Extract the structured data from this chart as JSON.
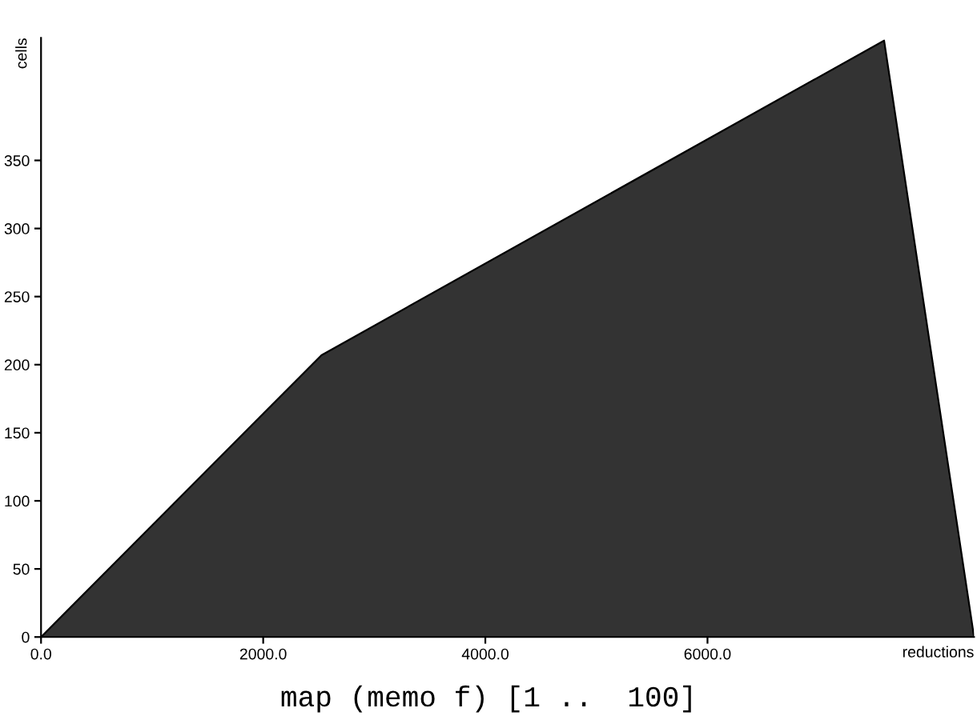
{
  "chart_data": {
    "type": "area",
    "title": "map (memo f) [1 ..  100]",
    "xlabel": "reductions",
    "ylabel": "cells",
    "x": [
      0,
      2525,
      7590,
      8400
    ],
    "series": [
      {
        "color": "#333333",
        "values": [
          0,
          207,
          438,
          0
        ]
      }
    ],
    "xlim": [
      0,
      8400
    ],
    "ylim": [
      0,
      440
    ],
    "xticks": [
      {
        "value": 0,
        "label": "0.0"
      },
      {
        "value": 2000,
        "label": "2000.0"
      },
      {
        "value": 4000,
        "label": "4000.0"
      },
      {
        "value": 6000,
        "label": "6000.0"
      }
    ],
    "yticks": [
      0,
      50,
      100,
      150,
      200,
      250,
      300,
      350
    ],
    "grid": false,
    "legend": false
  }
}
